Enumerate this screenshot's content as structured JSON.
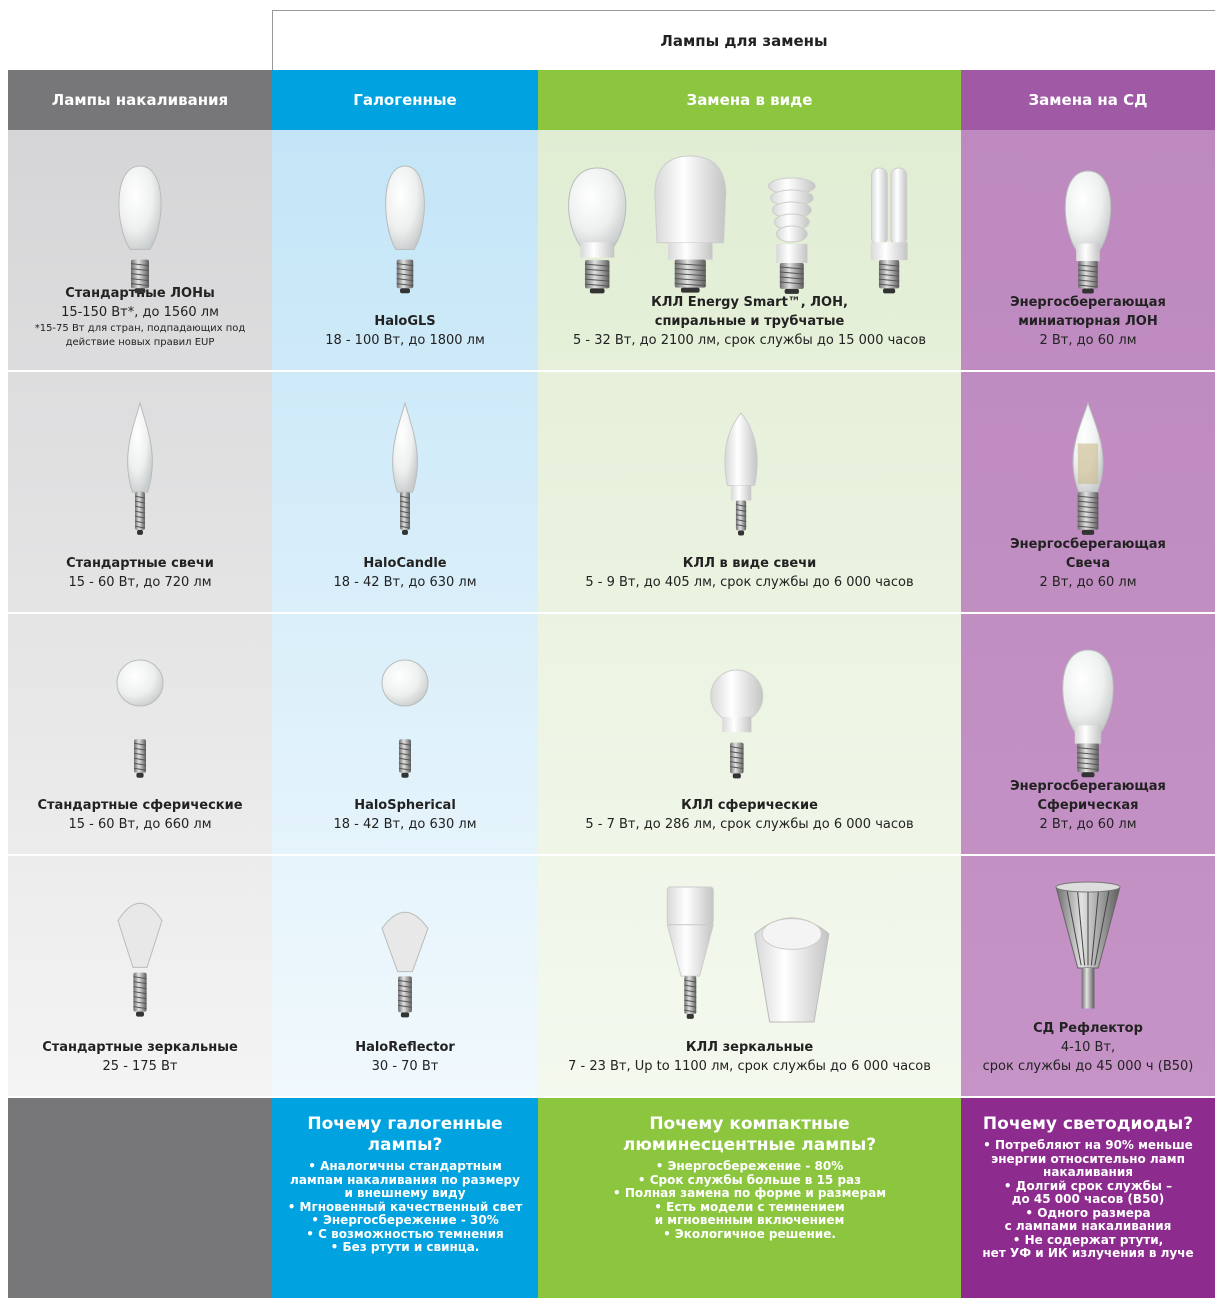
{
  "header": {
    "title": "Лампы для замены"
  },
  "columns": [
    "Лампы накаливания",
    "Галогенные",
    "Замена в виде",
    "Замена на СД"
  ],
  "rows": [
    [
      {
        "title": [
          "Стандартные ЛОНы"
        ],
        "details": [
          "15-150 Вт*, до 1560 лм"
        ],
        "note": [
          "*15-75 Вт для стран, подпадающих под",
          "действие новых правил EUP"
        ]
      },
      {
        "title": [
          "HaloGLS"
        ],
        "details": [
          "18 - 100 Вт, до 1800 лм"
        ]
      },
      {
        "title": [
          "КЛЛ Energy Smart™, ЛОН,",
          "спиральные и трубчатые"
        ],
        "details": [
          "5 - 32 Вт, до 2100 лм, срок службы до 15 000 часов"
        ]
      },
      {
        "title": [
          "Энергосберегающая",
          "миниатюрная ЛОН"
        ],
        "details": [
          "2 Вт, до 60 лм"
        ]
      }
    ],
    [
      {
        "title": [
          "Стандартные свечи"
        ],
        "details": [
          "15 - 60 Вт, до 720 лм"
        ]
      },
      {
        "title": [
          "HaloCandle"
        ],
        "details": [
          "18 - 42 Вт, до 630 лм"
        ]
      },
      {
        "title": [
          "КЛЛ в виде свечи"
        ],
        "details": [
          "5 - 9 Вт, до 405 лм, срок службы до 6 000 часов"
        ]
      },
      {
        "title": [
          "Энергосберегающая",
          "Свеча"
        ],
        "details": [
          "2 Вт, до 60 лм"
        ]
      }
    ],
    [
      {
        "title": [
          "Стандартные сферические"
        ],
        "details": [
          "15 - 60 Вт, до 660 лм"
        ]
      },
      {
        "title": [
          "HaloSpherical"
        ],
        "details": [
          "18 - 42 Вт, до 630 лм"
        ]
      },
      {
        "title": [
          "КЛЛ сферические"
        ],
        "details": [
          "5 - 7 Вт, до 286 лм, срок службы до 6 000 часов"
        ]
      },
      {
        "title": [
          "Энергосберегающая",
          "Сферическая"
        ],
        "details": [
          "2 Вт, до 60 лм"
        ]
      }
    ],
    [
      {
        "title": [
          "Стандартные зеркальные"
        ],
        "details": [
          "25 - 175 Вт"
        ]
      },
      {
        "title": [
          "HaloReflector"
        ],
        "details": [
          "30 - 70 Вт"
        ]
      },
      {
        "title": [
          "КЛЛ зеркальные"
        ],
        "details": [
          "7 - 23 Вт, Up to 1100 лм, срок службы до 6 000 часов"
        ]
      },
      {
        "title": [
          "СД Рефлектор"
        ],
        "details": [
          "4-10 Вт,",
          "срок службы до 45 000 ч (B50)"
        ]
      }
    ]
  ],
  "footer": [
    {
      "title": [
        "Почему галогенные",
        "лампы?"
      ],
      "points": [
        "• Аналогичны стандартным",
        "лампам накаливания по размеру",
        "и внешнему виду",
        "• Мгновенный качественный свет",
        "• Энергосбережение - 30%",
        "• С возможностью темнения",
        "• Без ртути и свинца."
      ]
    },
    {
      "title": [
        "Почему компактные",
        "люминесцентные лампы?"
      ],
      "points": [
        "• Энергосбережение - 80%",
        "• Срок службы больше в 15 раз",
        "• Полная замена по форме и размерам",
        "• Есть модели с темнением",
        "и мгновенным включением",
        "• Экологичное решение."
      ]
    },
    {
      "title": [
        "Почему светодиоды?"
      ],
      "points": [
        "• Потребляют на 90% меньше",
        "энергии относительно ламп",
        "накаливания",
        "• Долгий срок службы –",
        "до 45 000 часов (B50)",
        "• Одного размера",
        "с лампами накаливания",
        "• Не содержат ртути,",
        "нет УФ и ИК излучения в луче"
      ]
    }
  ]
}
